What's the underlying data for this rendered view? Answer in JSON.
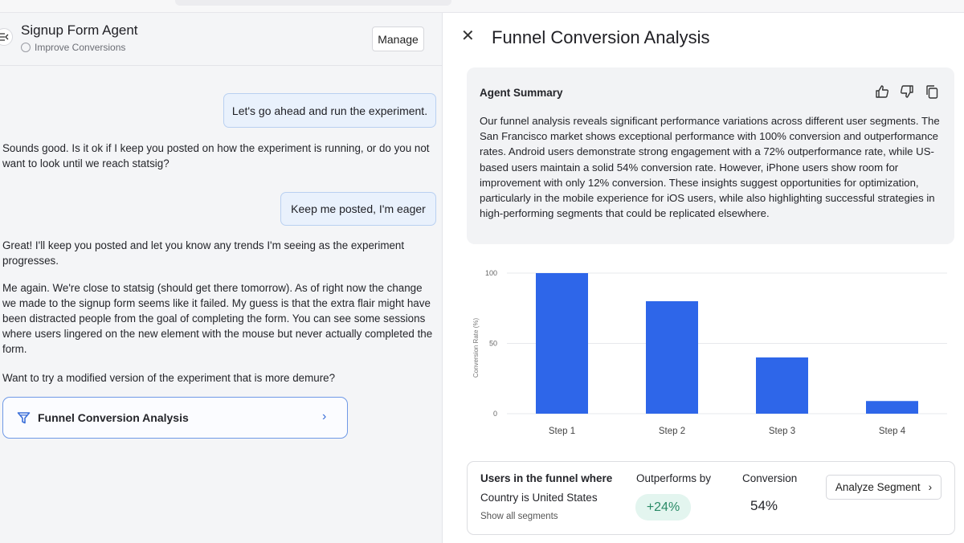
{
  "left_panel": {
    "agent_title": "Signup Form Agent",
    "agent_subtitle": "Improve Conversions",
    "manage_label": "Manage",
    "messages": [
      {
        "role": "user",
        "text": "Let's go ahead and run the experiment."
      },
      {
        "role": "agent",
        "text": "Sounds good. Is it ok if I keep you posted on how the experiment is running, or do you not want to look until we reach statsig?"
      },
      {
        "role": "user",
        "text": "Keep me posted, I'm eager"
      },
      {
        "role": "agent",
        "text": "Great! I'll keep you posted and let you know any trends I'm seeing as the experiment progresses."
      },
      {
        "role": "agent",
        "text": "Me again. We're close to statsig (should get there tomorrow). As of right now the change we made to the signup form seems like it failed. My guess is that the extra flair might have been distracted people from the goal of completing the form. You can see some sessions where users lingered on the new element with the mouse but never actually completed the form."
      },
      {
        "role": "agent",
        "text": "Want to try a modified version of the experiment that is more demure?"
      }
    ],
    "funnel_card_label": "Funnel Conversion Analysis",
    "icons": {
      "collapse": "collapse-panel-icon",
      "funnel": "funnel-icon",
      "chevron": "chevron-right-icon",
      "subtitle": "spiral-icon"
    },
    "accent_color": "#3b6fd8"
  },
  "right_panel": {
    "title": "Funnel Conversion Analysis",
    "summary_title": "Agent Summary",
    "summary_text": "Our funnel analysis reveals significant performance variations across different user segments. The San Francisco market shows exceptional performance with 100% conversion and outperformance rates. Android users demonstrate strong engagement with a 72% outperformance rate, while US-based users maintain a solid 54% conversion rate. However, iPhone users show room for improvement with only 12% conversion. These insights suggest opportunities for optimization, particularly in the mobile experience for iOS users, while also highlighting successful strategies in high-performing segments that could be replicated elsewhere.",
    "segment": {
      "title": "Users in the funnel where",
      "condition": "Country is United States",
      "show_all_link": "Show all segments",
      "outperforms_label": "Outperforms by",
      "outperforms_value": "+24%",
      "conversion_label": "Conversion",
      "conversion_value": "54%",
      "analyze_label": "Analyze Segment"
    }
  },
  "chart_data": {
    "type": "bar",
    "categories": [
      "Step 1",
      "Step 2",
      "Step 3",
      "Step 4"
    ],
    "values": [
      100,
      80,
      40,
      9
    ],
    "title": "",
    "xlabel": "",
    "ylabel": "Conversion Rate (%)",
    "ylim": [
      0,
      100
    ],
    "yticks": [
      0,
      50,
      100
    ],
    "grid": true,
    "bar_color": "#2e66e9"
  }
}
